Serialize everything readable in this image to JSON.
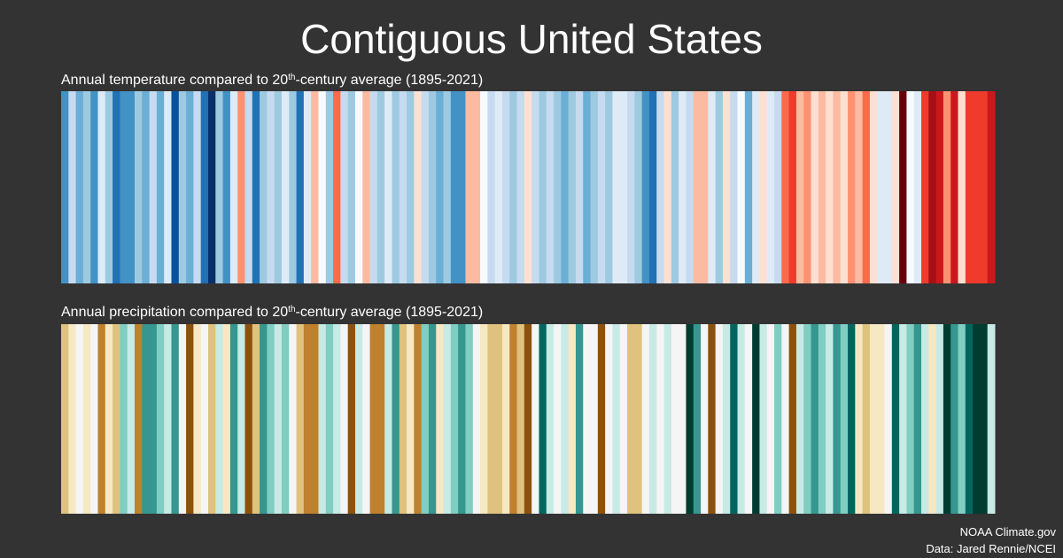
{
  "title": "Contiguous United States",
  "credits": [
    "NOAA Climate.gov",
    "Data: Jared Rennie/NCEI"
  ],
  "chart_data": [
    {
      "type": "stripes",
      "subtitle": [
        "Annual temperature compared to 20",
        "th",
        "-century average (1895-2021)"
      ],
      "colors": [
        "#4292c6",
        "#c6dbef",
        "#6baed6",
        "#9ecae1",
        "#4292c6",
        "#deebf7",
        "#9ecae1",
        "#2171b5",
        "#4292c6",
        "#4292c6",
        "#9ecae1",
        "#6baed6",
        "#c6dbef",
        "#6baed6",
        "#deebf7",
        "#08519c",
        "#9ecae1",
        "#6baed6",
        "#c6dbef",
        "#2171b5",
        "#08306b",
        "#9ecae1",
        "#4292c6",
        "#deebf7",
        "#fc9272",
        "#c6dbef",
        "#2171b5",
        "#9ecae1",
        "#c6dbef",
        "#9ecae1",
        "#deebf7",
        "#9ecae1",
        "#2171b5",
        "#deebf7",
        "#fcbba1",
        "#f7fbff",
        "#9ecae1",
        "#fb6a4a",
        "#c6dbef",
        "#9ecae1",
        "#f7fbff",
        "#fcbba1",
        "#c6dbef",
        "#9ecae1",
        "#deebf7",
        "#9ecae1",
        "#c6dbef",
        "#9ecae1",
        "#fee0d2",
        "#c6dbef",
        "#9ecae1",
        "#6baed6",
        "#9ecae1",
        "#4292c6",
        "#4292c6",
        "#fcbba1",
        "#fcbba1",
        "#f7fbff",
        "#c6dbef",
        "#deebf7",
        "#c6dbef",
        "#9ecae1",
        "#c6dbef",
        "#fee0d2",
        "#c6dbef",
        "#9ecae1",
        "#c6dbef",
        "#9ecae1",
        "#6baed6",
        "#9ecae1",
        "#c6dbef",
        "#6baed6",
        "#9ecae1",
        "#c6dbef",
        "#9ecae1",
        "#deebf7",
        "#deebf7",
        "#c6dbef",
        "#9ecae1",
        "#4292c6",
        "#2171b5",
        "#c6dbef",
        "#fee0d2",
        "#9ecae1",
        "#deebf7",
        "#c6dbef",
        "#fcbba1",
        "#fcbba1",
        "#deebf7",
        "#9ecae1",
        "#fee0d2",
        "#c6dbef",
        "#f7fbff",
        "#6baed6",
        "#deebf7",
        "#fee0d2",
        "#deebf7",
        "#c6dbef",
        "#fb6a4a",
        "#ef3b2c",
        "#fcbba1",
        "#fc9272",
        "#fee0d2",
        "#fcbba1",
        "#fee0d2",
        "#fcbba1",
        "#fee0d2",
        "#fc9272",
        "#fcbba1",
        "#fb6a4a",
        "#fee0d2",
        "#deebf7",
        "#deebf7",
        "#fee0d2",
        "#67000d",
        "#f7fbff",
        "#deebf7",
        "#ef3b2c",
        "#a50f15",
        "#cb181d",
        "#fc9272",
        "#cb181d",
        "#fee0d2",
        "#ef3b2c",
        "#ef3b2c",
        "#ef3b2c",
        "#cb181d"
      ]
    },
    {
      "type": "stripes",
      "subtitle": [
        "Annual precipitation compared to 20",
        "th",
        "-century average (1895-2021)"
      ],
      "colors": [
        "#dfc27d",
        "#f6e8c3",
        "#f5f5f5",
        "#f6e8c3",
        "#f5f5f5",
        "#bf812d",
        "#f6e8c3",
        "#dfc27d",
        "#80cdc1",
        "#c7eae5",
        "#bf812d",
        "#35978f",
        "#35978f",
        "#80cdc1",
        "#c7eae5",
        "#35978f",
        "#f5f5f5",
        "#8c510a",
        "#f6e8c3",
        "#f5f5f5",
        "#dfc27d",
        "#c7eae5",
        "#f6e8c3",
        "#35978f",
        "#c7eae5",
        "#8c510a",
        "#dfc27d",
        "#35978f",
        "#80cdc1",
        "#c7eae5",
        "#80cdc1",
        "#f5f5f5",
        "#dfc27d",
        "#bf812d",
        "#bf812d",
        "#c7eae5",
        "#80cdc1",
        "#c7eae5",
        "#f5f5f5",
        "#8c510a",
        "#c7eae5",
        "#f5f5f5",
        "#bf812d",
        "#bf812d",
        "#c7eae5",
        "#35978f",
        "#dfc27d",
        "#f6e8c3",
        "#bf812d",
        "#80cdc1",
        "#35978f",
        "#f6e8c3",
        "#c7eae5",
        "#80cdc1",
        "#35978f",
        "#80cdc1",
        "#f5f5f5",
        "#f6e8c3",
        "#dfc27d",
        "#dfc27d",
        "#f6e8c3",
        "#bf812d",
        "#dfc27d",
        "#8c510a",
        "#f5f5f5",
        "#01665e",
        "#c7eae5",
        "#f5f5f5",
        "#c7eae5",
        "#f6e8c3",
        "#35978f",
        "#f5f5f5",
        "#f5f5f5",
        "#8c510a",
        "#f5f5f5",
        "#c7eae5",
        "#f5f5f5",
        "#dfc27d",
        "#dfc27d",
        "#f5f5f5",
        "#c7eae5",
        "#f5f5f5",
        "#c7eae5",
        "#f5f5f5",
        "#f5f5f5",
        "#003c30",
        "#35978f",
        "#f5f5f5",
        "#8c510a",
        "#f5f5f5",
        "#c7eae5",
        "#01665e",
        "#c7eae5",
        "#f5f5f5",
        "#003c30",
        "#c7eae5",
        "#f5f5f5",
        "#80cdc1",
        "#f5f5f5",
        "#8c510a",
        "#c7eae5",
        "#80cdc1",
        "#35978f",
        "#80cdc1",
        "#c7eae5",
        "#35978f",
        "#80cdc1",
        "#01665e",
        "#f6e8c3",
        "#dfc27d",
        "#f6e8c3",
        "#f6e8c3",
        "#f5f5f5",
        "#01665e",
        "#c7eae5",
        "#80cdc1",
        "#35978f",
        "#c7eae5",
        "#f6e8c3",
        "#c7eae5",
        "#003c30",
        "#35978f",
        "#80cdc1",
        "#01665e",
        "#003c30",
        "#003c30",
        "#c7eae5"
      ]
    }
  ]
}
